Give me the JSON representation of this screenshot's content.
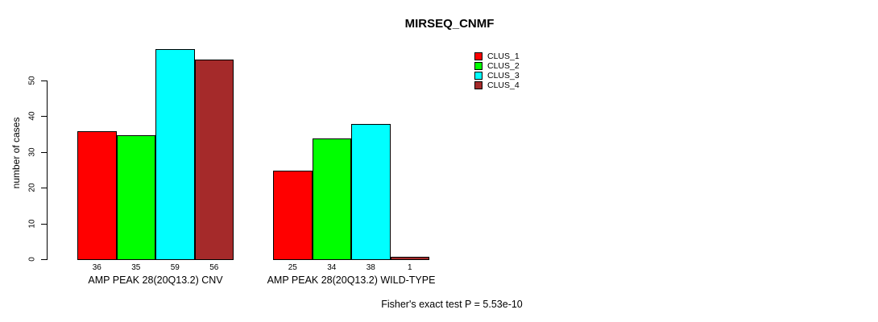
{
  "chart_data": {
    "type": "bar",
    "title": "MIRSEQ_CNMF",
    "xlabel": "",
    "ylabel": "number of cases",
    "ylim": [
      0,
      50
    ],
    "yticks": [
      0,
      10,
      20,
      30,
      40,
      50
    ],
    "grid": false,
    "legend_position": "top-right",
    "categories": [
      "AMP PEAK 28(20Q13.2) CNV",
      "AMP PEAK 28(20Q13.2) WILD-TYPE"
    ],
    "series": [
      {
        "name": "CLUS_1",
        "color": "#FF0000",
        "values": [
          36,
          25
        ]
      },
      {
        "name": "CLUS_2",
        "color": "#00FF00",
        "values": [
          35,
          34
        ]
      },
      {
        "name": "CLUS_3",
        "color": "#00FFFF",
        "values": [
          59,
          38
        ]
      },
      {
        "name": "CLUS_4",
        "color": "#A52A2A",
        "values": [
          56,
          1
        ]
      }
    ],
    "groups": [
      {
        "label": "AMP PEAK 28(20Q13.2) CNV",
        "values": [
          36,
          35,
          59,
          56
        ]
      },
      {
        "label": "AMP PEAK 28(20Q13.2) WILD-TYPE",
        "values": [
          25,
          34,
          38,
          1
        ]
      }
    ],
    "bar_value_labels_shown": true,
    "annotation": "Fisher's exact test P = 5.53e-10",
    "axis_color": "#000000",
    "background_color": "#FFFFFF"
  }
}
